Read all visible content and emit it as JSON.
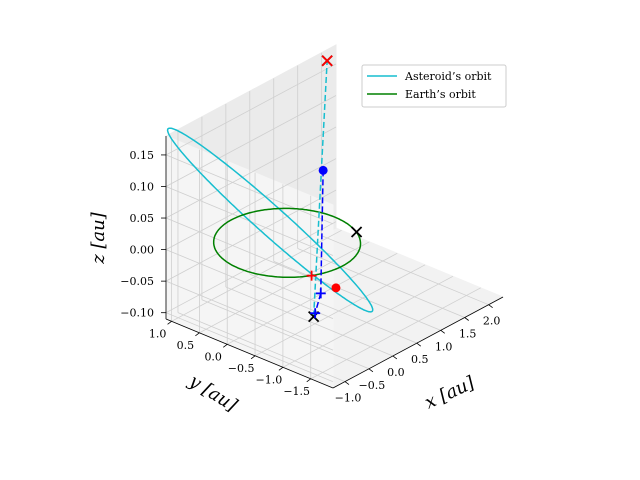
{
  "chart_data": {
    "type": "3d-line",
    "title": "",
    "xlabel": "x [au]",
    "ylabel": "y [au]",
    "zlabel": "z [au]",
    "xlim": [
      -1.25,
      2.3
    ],
    "ylim": [
      -1.9,
      1.1
    ],
    "zlim": [
      -0.11,
      0.18
    ],
    "x_ticks": [
      -1.0,
      -0.5,
      0.0,
      0.5,
      1.0,
      1.5,
      2.0
    ],
    "x_tick_labels": [
      "−1.0",
      "−0.5",
      "0.0",
      "0.5",
      "1.0",
      "1.5",
      "2.0"
    ],
    "y_ticks": [
      1.0,
      0.5,
      0.0,
      -0.5,
      -1.0,
      -1.5
    ],
    "y_tick_labels": [
      "1.0",
      "0.5",
      "0.0",
      "−0.5",
      "−1.0",
      "−1.5"
    ],
    "z_ticks": [
      0.15,
      0.1,
      0.05,
      0.0,
      -0.05,
      -0.1
    ],
    "z_tick_labels": [
      "0.15",
      "0.10",
      "0.05",
      "0.00",
      "−0.05",
      "−0.10"
    ],
    "grid": true,
    "legend_position": "top-right",
    "legend": [
      {
        "label": "Asteroid’s orbit",
        "color": "#17becf"
      },
      {
        "label": "Earth’s orbit",
        "color": "#008000"
      }
    ],
    "series": [
      {
        "name": "Asteroid’s orbit",
        "color": "#17becf",
        "style": "solid",
        "ellipse": {
          "a": 1.55,
          "e": 0.45,
          "inclination_deg": 6.0,
          "node_deg": 60.0,
          "perihelion_deg": 180.0
        }
      },
      {
        "name": "Earth’s orbit",
        "color": "#008000",
        "style": "solid",
        "circle": {
          "radius": 1.0
        }
      }
    ],
    "lines": [
      {
        "color": "#17becf",
        "style": "dashed",
        "from": [
          -0.55,
          -0.95,
          -0.06
        ],
        "to": [
          2.15,
          1.13,
          0.16
        ]
      },
      {
        "color": "#0000ff",
        "style": "dashed",
        "from": [
          -0.32,
          -0.88,
          -0.035
        ],
        "to": [
          1.09,
          0.29,
          0.06
        ]
      },
      {
        "color": "#0000ff",
        "style": "dashed",
        "from": [
          -0.32,
          -0.88,
          -0.035
        ],
        "to": [
          -0.46,
          -0.9,
          -0.06
        ]
      }
    ],
    "markers": [
      {
        "symbol": "x",
        "color": "#000000",
        "point": [
          2.15,
          1.13,
          0.16
        ]
      },
      {
        "symbol": "x",
        "color": "#000000",
        "point": [
          -0.55,
          -0.95,
          -0.06
        ]
      },
      {
        "symbol": "x",
        "color": "#000000",
        "point": [
          0.87,
          -0.5,
          0.0
        ]
      },
      {
        "symbol": "x",
        "color": "#ff0000",
        "point": [
          2.15,
          1.13,
          0.16
        ]
      },
      {
        "symbol": "o",
        "color": "#ff0000",
        "point": [
          -0.13,
          -0.99,
          -0.03
        ]
      },
      {
        "symbol": "o",
        "color": "#0000ff",
        "point": [
          1.09,
          0.29,
          0.06
        ]
      },
      {
        "symbol": "+",
        "color": "#ff0000",
        "point": [
          -0.5,
          -0.87,
          0.0
        ]
      },
      {
        "symbol": "+",
        "color": "#0000ff",
        "point": [
          -0.32,
          -0.88,
          -0.035
        ]
      },
      {
        "symbol": "+",
        "color": "#0000ff",
        "point": [
          -0.46,
          -0.9,
          -0.06
        ]
      }
    ]
  }
}
